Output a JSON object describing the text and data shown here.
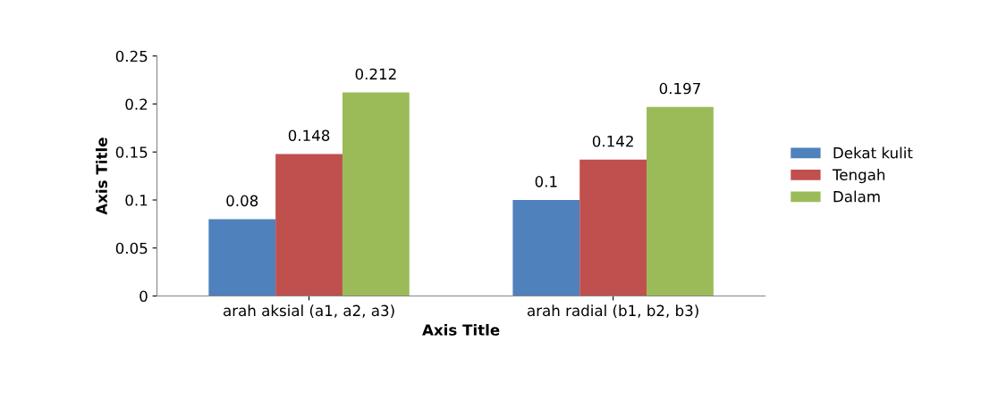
{
  "chart_data": {
    "type": "bar",
    "xlabel": "Axis Title",
    "ylabel": "Axis Title",
    "categories": [
      "arah aksial (a1, a2, a3)",
      "arah radial (b1, b2, b3)"
    ],
    "series": [
      {
        "name": "Dekat kulit",
        "color": "#4f81bd",
        "values": [
          0.08,
          0.1
        ]
      },
      {
        "name": "Tengah",
        "color": "#c0504d",
        "values": [
          0.148,
          0.142
        ]
      },
      {
        "name": "Dalam",
        "color": "#9bbb59",
        "values": [
          0.212,
          0.197
        ]
      }
    ],
    "ylim": [
      0,
      0.25
    ],
    "yticks": [
      0,
      0.05,
      0.1,
      0.15,
      0.2,
      0.25
    ],
    "grid": false,
    "legend": "right",
    "data_labels": true
  }
}
